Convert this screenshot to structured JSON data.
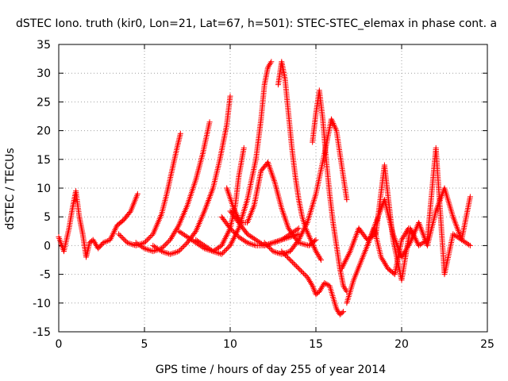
{
  "chart_data": {
    "type": "scatter",
    "title": "dSTEC Iono. truth (kir0, Lon=21, Lat=67, h=501): STEC-STEC_elemax in phase cont. a",
    "xlabel": "GPS time / hours of day 255 of year 2014",
    "ylabel": "dSTEC  / TECUs",
    "xlim": [
      0,
      25
    ],
    "ylim": [
      -15,
      35
    ],
    "xticks": [
      0,
      5,
      10,
      15,
      20,
      25
    ],
    "yticks": [
      -15,
      -10,
      -5,
      0,
      5,
      10,
      15,
      20,
      25,
      30,
      35
    ],
    "grid": true,
    "marker": "+",
    "color": "#ff0000",
    "series": [
      {
        "x": [
          0.0,
          0.3,
          0.6,
          0.8,
          1.0,
          1.2,
          1.4,
          1.6,
          1.8,
          2.0,
          2.3,
          2.6,
          3.0,
          3.4,
          3.8,
          4.2,
          4.6
        ],
        "y": [
          1.5,
          -1.0,
          3.0,
          6.5,
          9.5,
          5.0,
          2.0,
          -2.0,
          0.5,
          1.0,
          -0.5,
          0.5,
          1.0,
          3.5,
          4.5,
          6.0,
          9.0
        ]
      },
      {
        "x": [
          3.5,
          4.0,
          4.5,
          5.0,
          5.5,
          6.0,
          6.3,
          6.6,
          6.9,
          7.1
        ],
        "y": [
          2.0,
          0.5,
          0.0,
          0.5,
          2.0,
          5.5,
          9.0,
          13.0,
          17.0,
          19.5
        ]
      },
      {
        "x": [
          4.5,
          5.0,
          5.5,
          6.0,
          6.5,
          7.0,
          7.5,
          8.0,
          8.4,
          8.8
        ],
        "y": [
          0.5,
          -0.5,
          -1.0,
          -0.5,
          1.0,
          3.5,
          7.0,
          11.5,
          16.0,
          21.5
        ]
      },
      {
        "x": [
          5.5,
          6.0,
          6.5,
          7.0,
          7.5,
          8.0,
          8.5,
          9.0,
          9.4,
          9.8,
          10.0
        ],
        "y": [
          0.0,
          -1.0,
          -1.5,
          -1.0,
          0.5,
          2.5,
          6.0,
          10.0,
          15.0,
          21.0,
          26.0
        ]
      },
      {
        "x": [
          7.0,
          7.5,
          8.0,
          8.5,
          9.0,
          9.5,
          10.0,
          10.3,
          10.5,
          10.8
        ],
        "y": [
          2.5,
          1.5,
          0.5,
          -0.5,
          -1.0,
          0.0,
          3.0,
          7.0,
          12.0,
          17.0
        ]
      },
      {
        "x": [
          8.0,
          8.5,
          9.0,
          9.5,
          10.0,
          10.5,
          11.0,
          11.5,
          11.8,
          12.0,
          12.2,
          12.4
        ],
        "y": [
          1.0,
          0.0,
          -1.0,
          -1.5,
          0.0,
          3.0,
          8.0,
          15.0,
          22.0,
          28.0,
          31.0,
          32.0
        ]
      },
      {
        "x": [
          9.5,
          10.0,
          10.5,
          11.0,
          11.5,
          12.0,
          12.5,
          13.0,
          13.5,
          14.0
        ],
        "y": [
          5.0,
          3.0,
          1.5,
          0.5,
          0.0,
          0.0,
          0.5,
          1.0,
          1.5,
          2.0
        ]
      },
      {
        "x": [
          10.0,
          10.5,
          11.0,
          11.5,
          12.0,
          12.5,
          13.0,
          13.5,
          14.0
        ],
        "y": [
          6.0,
          4.0,
          2.0,
          1.0,
          0.0,
          0.5,
          1.0,
          2.0,
          3.0
        ]
      },
      {
        "x": [
          9.8,
          10.2,
          10.6,
          11.0,
          11.4,
          11.8,
          12.2,
          12.6,
          13.0,
          13.4,
          14.0,
          14.6,
          15.0
        ],
        "y": [
          10.0,
          6.5,
          4.0,
          4.0,
          7.0,
          13.0,
          14.5,
          11.0,
          6.5,
          3.0,
          0.5,
          0.0,
          1.0
        ]
      },
      {
        "x": [
          12.8,
          13.0,
          13.2,
          13.4,
          13.6,
          13.8,
          14.0,
          14.2,
          14.4,
          14.7,
          15.0,
          15.3
        ],
        "y": [
          28.0,
          32.0,
          29.0,
          23.0,
          17.0,
          12.0,
          8.0,
          5.0,
          3.0,
          1.0,
          -1.0,
          -2.5
        ]
      },
      {
        "x": [
          12.0,
          12.5,
          13.0,
          13.5,
          14.0,
          14.5,
          15.0,
          15.5,
          15.9,
          16.2,
          16.5,
          16.8
        ],
        "y": [
          0.5,
          -1.0,
          -1.5,
          -1.0,
          1.0,
          4.0,
          9.0,
          16.0,
          22.0,
          20.0,
          14.0,
          8.0
        ]
      },
      {
        "x": [
          14.8,
          15.0,
          15.2,
          15.4,
          15.6,
          15.8,
          16.0,
          16.2,
          16.4,
          16.6,
          16.8
        ],
        "y": [
          18.0,
          23.0,
          27.0,
          22.0,
          15.0,
          9.0,
          4.0,
          0.0,
          -4.0,
          -7.0,
          -8.0
        ]
      },
      {
        "x": [
          13.0,
          13.5,
          14.0,
          14.5,
          14.8,
          15.0,
          15.2,
          15.5,
          15.8,
          16.0,
          16.2,
          16.4,
          16.6
        ],
        "y": [
          -1.0,
          -2.5,
          -4.0,
          -5.5,
          -7.0,
          -8.5,
          -8.0,
          -6.5,
          -7.0,
          -9.0,
          -11.0,
          -12.0,
          -11.5
        ]
      },
      {
        "x": [
          16.5,
          17.0,
          17.5,
          18.0,
          18.5,
          19.0,
          19.5,
          20.0,
          20.5,
          21.0,
          21.5,
          22.0,
          22.5,
          23.0,
          23.5,
          24.0
        ],
        "y": [
          -4.0,
          -1.0,
          3.0,
          1.0,
          2.0,
          14.0,
          1.0,
          -6.0,
          3.0,
          0.0,
          1.0,
          17.0,
          -5.0,
          2.0,
          1.0,
          0.0
        ]
      },
      {
        "x": [
          18.0,
          18.5,
          19.0,
          19.5,
          20.0,
          20.5,
          21.0,
          21.5,
          22.0,
          22.5,
          23.0,
          23.5,
          24.0
        ],
        "y": [
          0.0,
          4.0,
          8.0,
          2.0,
          -2.0,
          0.5,
          4.0,
          0.0,
          6.0,
          10.0,
          5.0,
          1.0,
          8.5
        ]
      },
      {
        "x": [
          16.8,
          17.2,
          17.6,
          18.0,
          18.4,
          18.8,
          19.2,
          19.6,
          20.0,
          20.4
        ],
        "y": [
          -10.0,
          -6.0,
          -3.0,
          0.0,
          3.0,
          -2.0,
          -4.0,
          -5.0,
          1.0,
          3.0
        ]
      }
    ]
  }
}
